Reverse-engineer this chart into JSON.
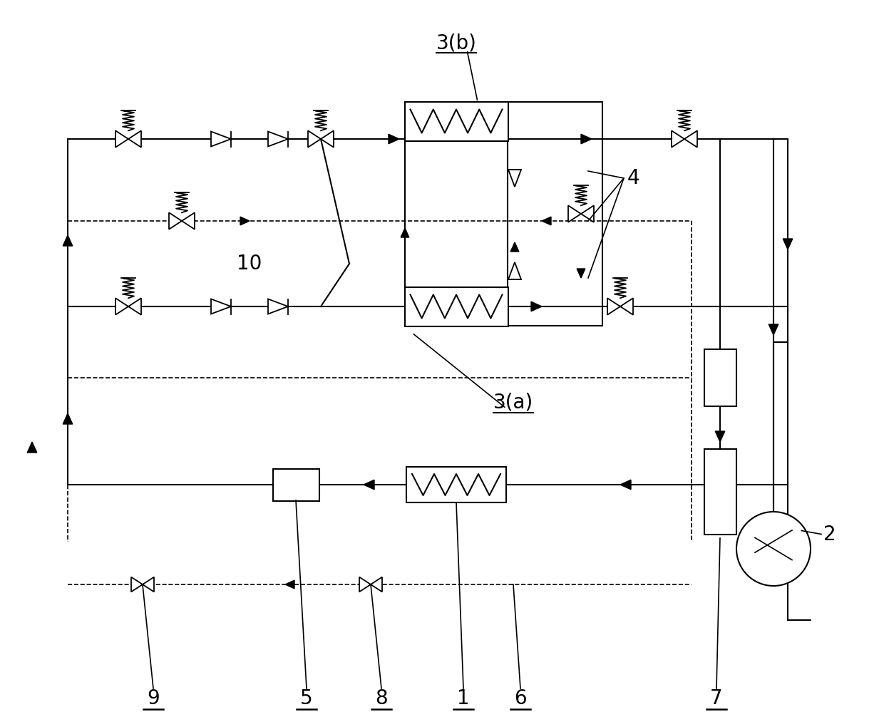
{
  "fig_width": 12.4,
  "fig_height": 10.13,
  "dpi": 100,
  "bg_color": "#ffffff",
  "lc": "#000000",
  "lw": 1.5,
  "dlw": 1.2,
  "labels": {
    "3b": "3(b)",
    "3a": "3(a)",
    "4": "4",
    "10": "10",
    "2": "2",
    "1": "1",
    "5": "5",
    "6": "6",
    "7": "7",
    "8": "8",
    "9": "9"
  }
}
